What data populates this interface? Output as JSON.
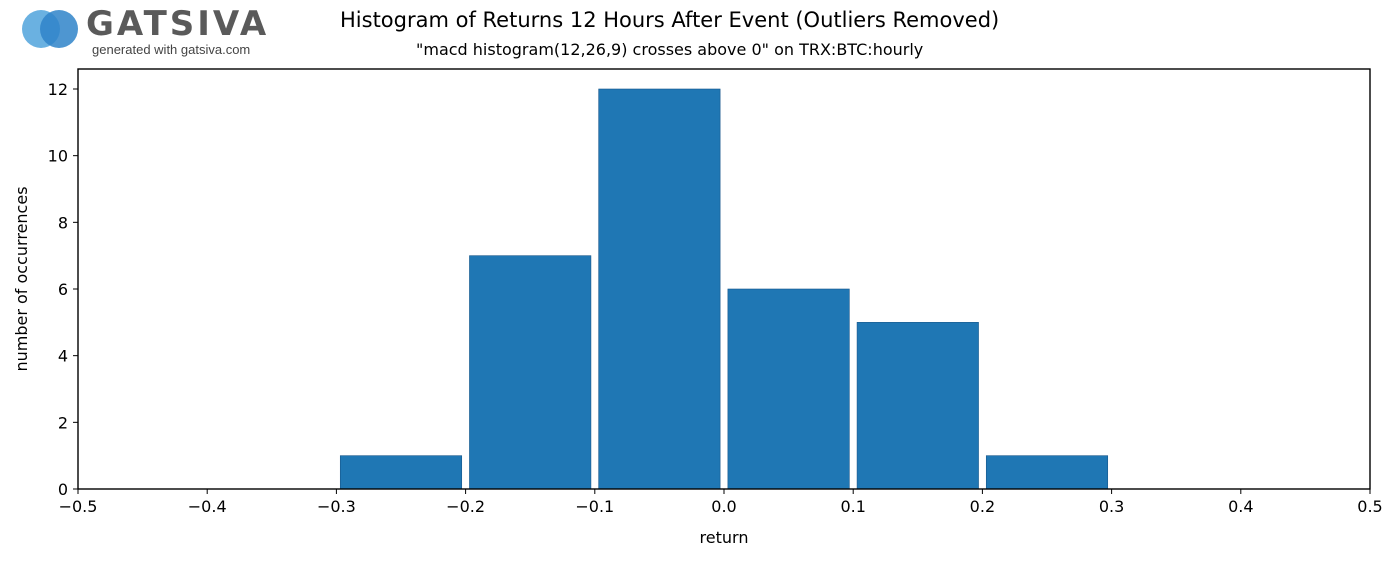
{
  "logo": {
    "wordmark": "GATSIVA",
    "tagline": "generated with gatsiva.com",
    "colors": [
      "#5aa9de",
      "#2f84c9"
    ]
  },
  "chart_data": {
    "type": "bar",
    "title": "Histogram of Returns 12 Hours After Event (Outliers Removed)",
    "subtitle": "\"macd histogram(12,26,9) crosses above 0\" on TRX:BTC:hourly",
    "xlabel": "return",
    "ylabel": "number of occurrences",
    "xlim": [
      -0.5,
      0.5
    ],
    "ylim": [
      0,
      12.6
    ],
    "xticks": [
      "−0.5",
      "−0.4",
      "−0.3",
      "−0.2",
      "−0.1",
      "0.0",
      "0.1",
      "0.2",
      "0.3",
      "0.4",
      "0.5"
    ],
    "yticks": [
      "0",
      "2",
      "4",
      "6",
      "8",
      "10",
      "12"
    ],
    "bins": [
      {
        "start": -0.3,
        "end": -0.2,
        "value": 1
      },
      {
        "start": -0.2,
        "end": -0.1,
        "value": 7
      },
      {
        "start": -0.1,
        "end": 0.0,
        "value": 12
      },
      {
        "start": 0.0,
        "end": 0.1,
        "value": 6
      },
      {
        "start": 0.1,
        "end": 0.2,
        "value": 5
      },
      {
        "start": 0.2,
        "end": 0.3,
        "value": 1
      }
    ],
    "bar_color": "#1f77b4",
    "grid": false,
    "legend": "none"
  }
}
